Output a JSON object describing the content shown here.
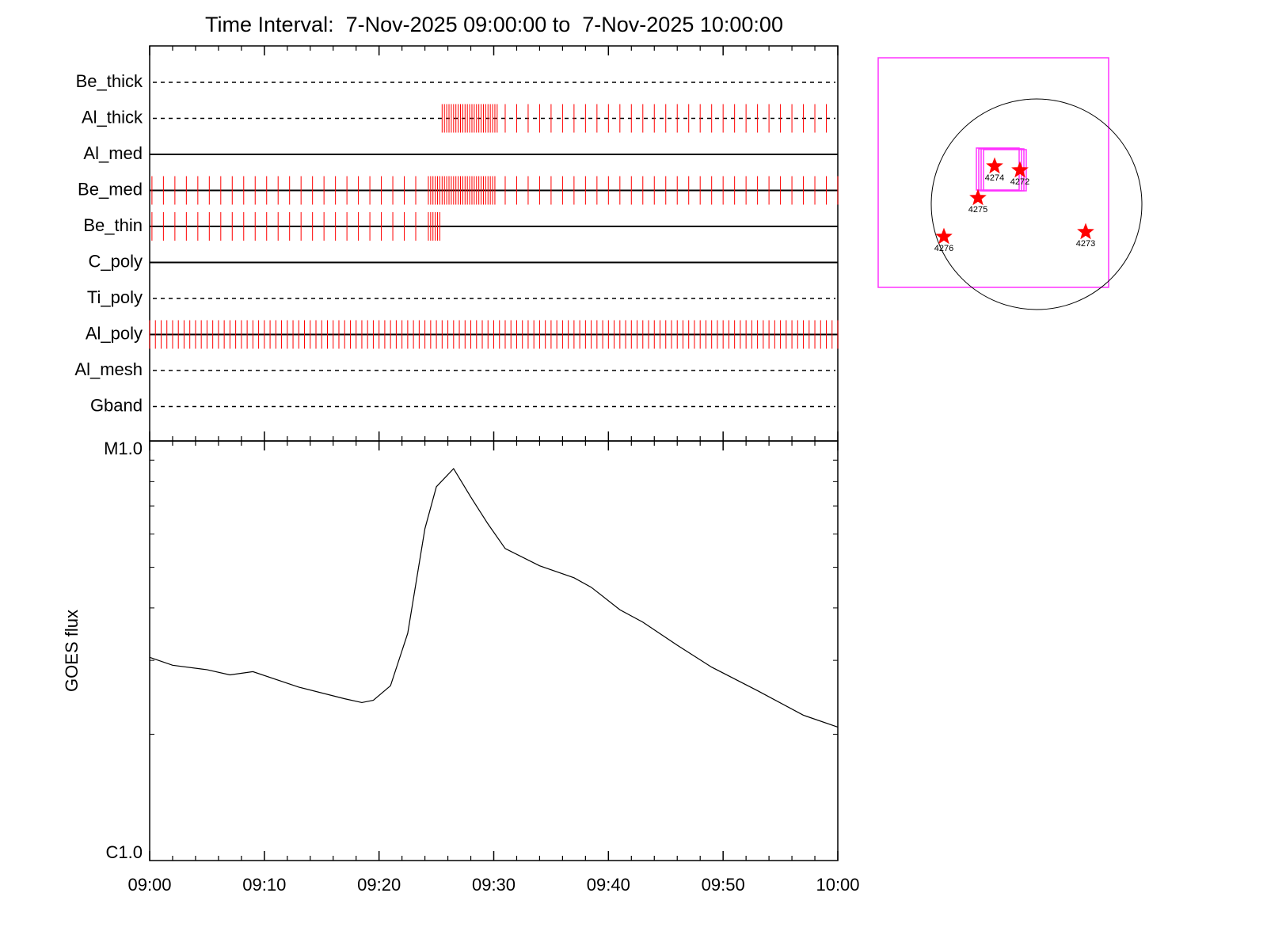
{
  "chart_data": [
    {
      "type": "timeline",
      "title": "Time Interval:  7-Nov-2025 09:00:00 to  7-Nov-2025 10:00:00",
      "xlim": [
        0,
        60
      ],
      "mark_color": "#ff0000",
      "rows": [
        {
          "name": "Be_thick",
          "style": "dashed",
          "times": []
        },
        {
          "name": "Al_thick",
          "style": "dashed",
          "times": [
            25.5,
            25.7,
            25.9,
            26.1,
            26.3,
            26.5,
            26.7,
            26.9,
            27.1,
            27.3,
            27.5,
            27.7,
            27.9,
            28.1,
            28.3,
            28.5,
            28.7,
            28.9,
            29.1,
            29.3,
            29.5,
            29.7,
            29.9,
            30.1,
            30.3,
            31,
            32,
            33,
            34,
            35,
            36,
            37,
            38,
            39,
            40,
            41,
            42,
            43,
            44,
            45,
            46,
            47,
            48,
            49,
            50,
            51,
            52,
            53,
            54,
            55,
            56,
            57,
            58,
            59
          ]
        },
        {
          "name": "Al_med",
          "style": "solid",
          "times": []
        },
        {
          "name": "Be_med",
          "style": "solid",
          "times": [
            0.2,
            1.2,
            2.2,
            3.2,
            4.2,
            5.2,
            6.2,
            7.2,
            8.2,
            9.2,
            10.2,
            11.2,
            12.2,
            13.2,
            14.2,
            15.2,
            16.2,
            17.2,
            18.2,
            19.2,
            20.2,
            21.2,
            22.2,
            23.2,
            24.3,
            24.5,
            24.7,
            24.9,
            25.1,
            25.3,
            25.5,
            25.7,
            25.9,
            26.1,
            26.3,
            26.5,
            26.7,
            26.9,
            27.1,
            27.3,
            27.5,
            27.7,
            27.9,
            28.1,
            28.3,
            28.5,
            28.7,
            28.9,
            29.1,
            29.3,
            29.5,
            29.7,
            29.9,
            30.1,
            31,
            32,
            33,
            34,
            35,
            36,
            37,
            38,
            39,
            40,
            41,
            42,
            43,
            44,
            45,
            46,
            47,
            48,
            49,
            50,
            51,
            52,
            53,
            54,
            55,
            56,
            57,
            58,
            59,
            60
          ]
        },
        {
          "name": "Be_thin",
          "style": "solid",
          "times": [
            0.2,
            1.2,
            2.2,
            3.2,
            4.2,
            5.2,
            6.2,
            7.2,
            8.2,
            9.2,
            10.2,
            11.2,
            12.2,
            13.2,
            14.2,
            15.2,
            16.2,
            17.2,
            18.2,
            19.2,
            20.2,
            21.2,
            22.2,
            23.2,
            24.3,
            24.5,
            24.7,
            24.9,
            25.1,
            25.3
          ]
        },
        {
          "name": "C_poly",
          "style": "solid",
          "times": []
        },
        {
          "name": "Ti_poly",
          "style": "dashed",
          "times": []
        },
        {
          "name": "Al_poly",
          "style": "solid",
          "times": [
            0,
            0.5,
            1,
            1.5,
            2,
            2.5,
            3,
            3.5,
            4,
            4.5,
            5,
            5.5,
            6,
            6.5,
            7,
            7.5,
            8,
            8.5,
            9,
            9.5,
            10,
            10.5,
            11,
            11.5,
            12,
            12.5,
            13,
            13.5,
            14,
            14.5,
            15,
            15.5,
            16,
            16.5,
            17,
            17.5,
            18,
            18.5,
            19,
            19.5,
            20,
            20.5,
            21,
            21.5,
            22,
            22.5,
            23,
            23.5,
            24,
            24.5,
            25,
            25.5,
            26,
            26.5,
            27,
            27.5,
            28,
            28.5,
            29,
            29.5,
            30,
            30.5,
            31,
            31.5,
            32,
            32.5,
            33,
            33.5,
            34,
            34.5,
            35,
            35.5,
            36,
            36.5,
            37,
            37.5,
            38,
            38.5,
            39,
            39.5,
            40,
            40.5,
            41,
            41.5,
            42,
            42.5,
            43,
            43.5,
            44,
            44.5,
            45,
            45.5,
            46,
            46.5,
            47,
            47.5,
            48,
            48.5,
            49,
            49.5,
            50,
            50.5,
            51,
            51.5,
            52,
            52.5,
            53,
            53.5,
            54,
            54.5,
            55,
            55.5,
            56,
            56.5,
            57,
            57.5,
            58,
            58.5,
            59,
            59.5,
            60
          ]
        },
        {
          "name": "Al_mesh",
          "style": "dashed",
          "times": []
        },
        {
          "name": "Gband",
          "style": "dashed",
          "times": []
        }
      ]
    },
    {
      "type": "line",
      "y_label": "GOES flux",
      "log_scale": true,
      "color": "#000000",
      "xlim": [
        0,
        60
      ],
      "xticks": [
        {
          "value": 0,
          "label": "09:00"
        },
        {
          "value": 10,
          "label": "09:10"
        },
        {
          "value": 20,
          "label": "09:20"
        },
        {
          "value": 30,
          "label": "09:30"
        },
        {
          "value": 40,
          "label": "09:40"
        },
        {
          "value": 50,
          "label": "09:50"
        },
        {
          "value": 60,
          "label": "10:00"
        }
      ],
      "minor_xticks": [
        2,
        4,
        6,
        8,
        12,
        14,
        16,
        18,
        22,
        24,
        26,
        28,
        32,
        34,
        36,
        38,
        42,
        44,
        46,
        48,
        52,
        54,
        56,
        58
      ],
      "ylim": [
        1e-06,
        1e-05
      ],
      "yticks": [
        {
          "value": 1e-06,
          "label": "C1.0"
        },
        {
          "value": 1e-05,
          "label": "M1.0"
        }
      ],
      "minor_yticks": [
        2e-06,
        3e-06,
        4e-06,
        5e-06,
        6e-06,
        7e-06,
        8e-06,
        9e-06
      ],
      "x": [
        0,
        2,
        5,
        7,
        9,
        13,
        17,
        18.5,
        19.5,
        21,
        22.5,
        24,
        25,
        26.5,
        28,
        29.5,
        31,
        34,
        37,
        38.5,
        41,
        43,
        46,
        49,
        53,
        57,
        60
      ],
      "values": [
        3.05e-06,
        2.92e-06,
        2.85e-06,
        2.77e-06,
        2.82e-06,
        2.59e-06,
        2.43e-06,
        2.38e-06,
        2.41e-06,
        2.61e-06,
        3.48e-06,
        6.18e-06,
        7.78e-06,
        8.59e-06,
        7.35e-06,
        6.34e-06,
        5.54e-06,
        5.04e-06,
        4.72e-06,
        4.48e-06,
        3.96e-06,
        3.7e-06,
        3.26e-06,
        2.89e-06,
        2.54e-06,
        2.22e-06,
        2.08e-06
      ]
    }
  ],
  "map": {
    "regions": [
      "4274",
      "4272",
      "4275",
      "4276",
      "4273"
    ]
  }
}
